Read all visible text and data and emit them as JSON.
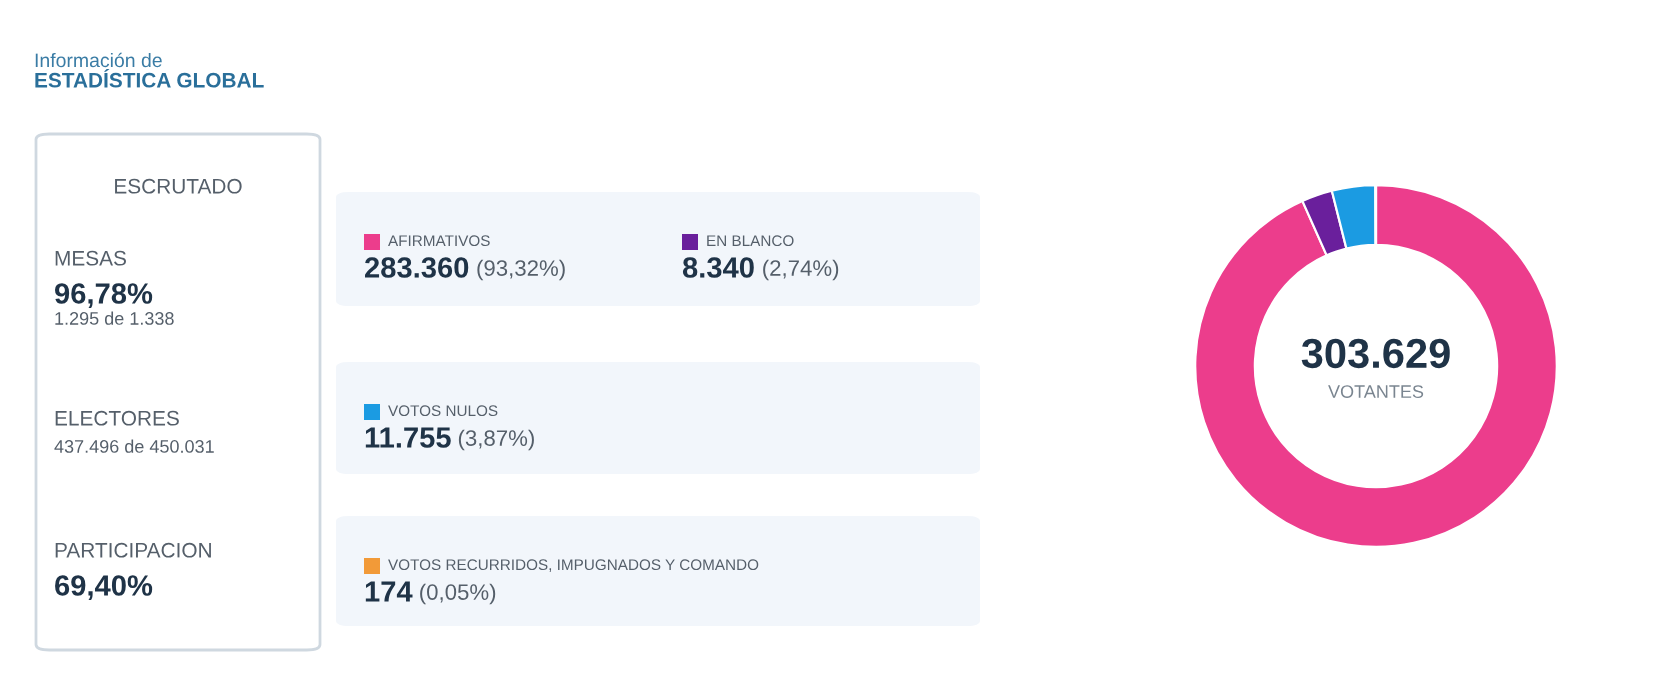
{
  "chart_data": [
    {
      "type": "other",
      "title": "Información de",
      "subtitle": "ESTADÍSTICA GLOBAL",
      "annotations": [
        "ESCRUTADO",
        "MESAS",
        "96,78%",
        "1.295 de 1.338",
        "ELECTORES",
        "437.496 de 450.031",
        "PARTICIPACION",
        "69,40%"
      ]
    },
    {
      "type": "donut",
      "categories": [
        "AFIRMATIVOS",
        "EN BLANCO",
        "VOTOS NULOS",
        "VOTOS RECURRIDOS, IMPUGNADOS Y COMANDO"
      ],
      "values": [
        283360,
        8340,
        11755,
        174
      ],
      "colors": [
        "#ec3d8c",
        "#6a1f9c",
        "#1b9be2",
        "#f29a38"
      ],
      "value_labels": [
        "283.360 (93,32%)",
        "8.340 (2,74%)",
        "11.755 (3,87%)",
        "174 (0,05%)"
      ],
      "legend": "left",
      "annotations": [
        "303.629",
        "VOTANTES"
      ]
    }
  ]
}
